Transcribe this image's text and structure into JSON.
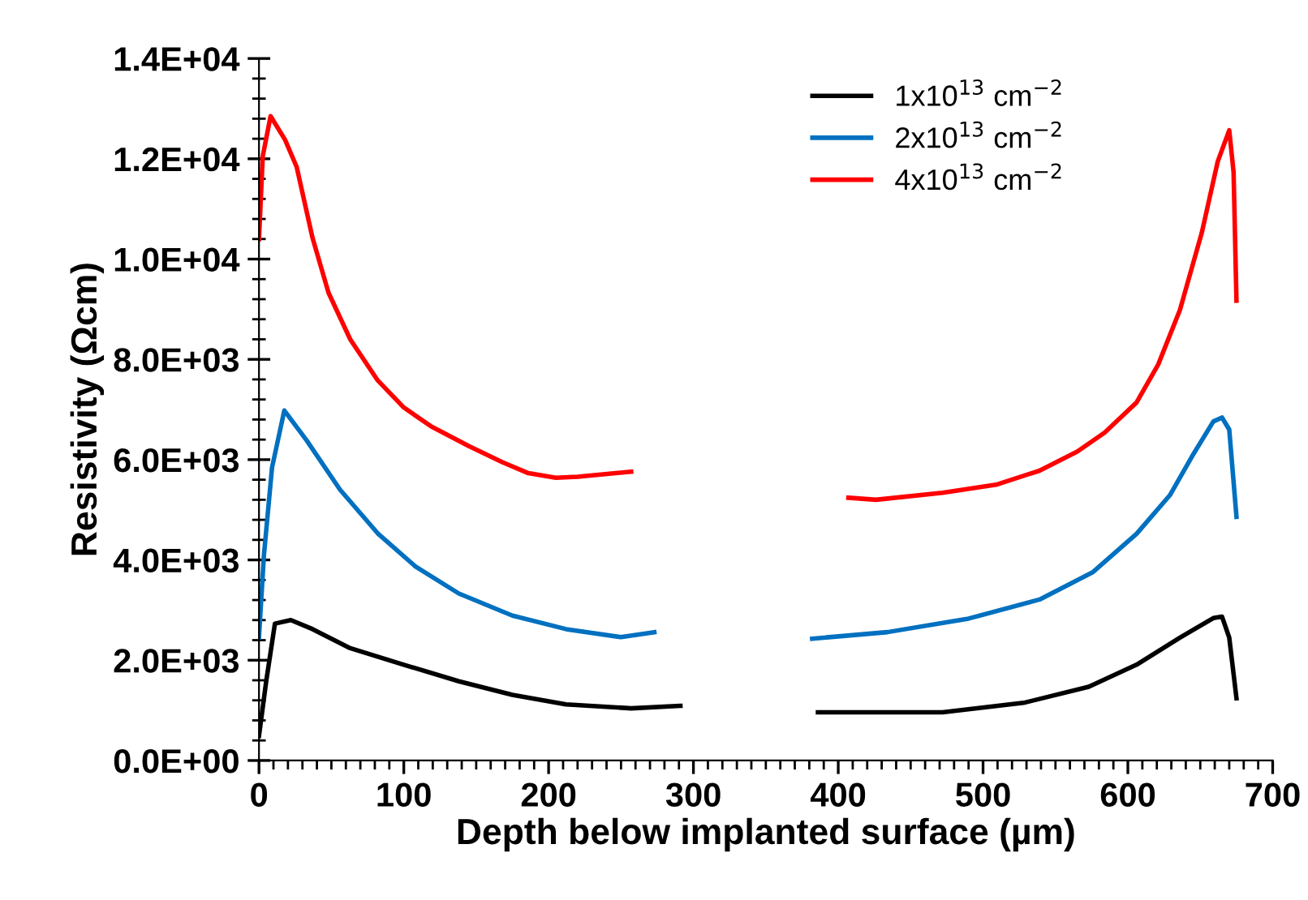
{
  "chart_data": {
    "type": "line",
    "xlabel": "Depth below implanted surface (µm)",
    "ylabel": "Resistivity (Ωcm)",
    "xlim": [
      0,
      700
    ],
    "xticks": [
      0,
      100,
      200,
      300,
      400,
      500,
      600,
      700
    ],
    "ylim": [
      0,
      14000
    ],
    "yticks": [
      {
        "value": 0,
        "label": "0.0E+00"
      },
      {
        "value": 2000,
        "label": "2.0E+03"
      },
      {
        "value": 4000,
        "label": "4.0E+03"
      },
      {
        "value": 6000,
        "label": "6.0E+03"
      },
      {
        "value": 8000,
        "label": "8.0E+03"
      },
      {
        "value": 10000,
        "label": "1.0E+04"
      },
      {
        "value": 12000,
        "label": "1.2E+04"
      },
      {
        "value": 14000,
        "label": "1.4E+04"
      }
    ],
    "grid": false,
    "legend": "top right",
    "marker": "none",
    "line_style": "solid",
    "series": [
      {
        "name": "1x10$^{13}$ cm$^{−2}$",
        "color": "#000000",
        "x": [
          0,
          5,
          11,
          22,
          37,
          63,
          100,
          138,
          175,
          212,
          257,
          291,
          null,
          386,
          472,
          528,
          573,
          606,
          636,
          659,
          665,
          670,
          675
        ],
        "values": [
          490,
          1580,
          2730,
          2800,
          2620,
          2240,
          1910,
          1580,
          1310,
          1120,
          1040,
          1090,
          null,
          960,
          960,
          1150,
          1470,
          1910,
          2450,
          2840,
          2870,
          2450,
          1240
        ]
      },
      {
        "name": "2x10$^{13}$ cm$^{−2}$",
        "color": "#0070c0",
        "x": [
          0,
          3.4,
          9,
          17.5,
          33,
          56,
          82,
          108,
          138,
          175,
          212,
          250,
          273,
          null,
          382,
          434,
          490,
          539,
          576,
          606,
          629,
          644,
          659,
          665,
          670,
          675
        ],
        "values": [
          2460,
          4090,
          5840,
          6980,
          6380,
          5400,
          4530,
          3870,
          3330,
          2890,
          2620,
          2460,
          2560,
          null,
          2430,
          2560,
          2830,
          3210,
          3760,
          4520,
          5290,
          6050,
          6760,
          6840,
          6600,
          4860
        ]
      },
      {
        "name": "4x10$^{13}$ cm$^{−2}$",
        "color": "#ff0000",
        "x": [
          0,
          2.6,
          8,
          18,
          26,
          37,
          48,
          63,
          82,
          100,
          119,
          145,
          168,
          186,
          205,
          220,
          257,
          null,
          407,
          426,
          472,
          509,
          539,
          565,
          584,
          606,
          621,
          636,
          651,
          662,
          670,
          673,
          675
        ],
        "values": [
          10400,
          12050,
          12850,
          12380,
          11840,
          10420,
          9330,
          8400,
          7580,
          7040,
          6660,
          6270,
          5950,
          5730,
          5640,
          5660,
          5760,
          null,
          5240,
          5200,
          5340,
          5500,
          5780,
          6160,
          6540,
          7140,
          7900,
          8990,
          10520,
          11940,
          12570,
          11730,
          9170
        ]
      }
    ]
  }
}
